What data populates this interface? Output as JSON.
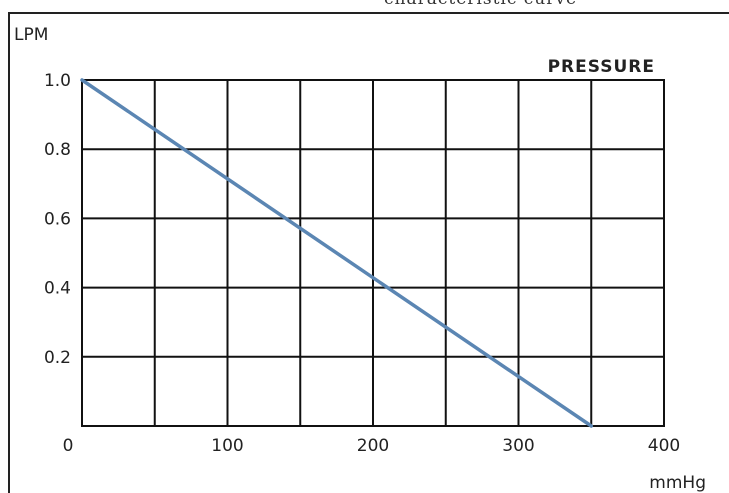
{
  "header": {
    "title_fragment": "characteristic curve"
  },
  "chart_data": {
    "type": "line",
    "title": "",
    "xlabel": "mmHg",
    "ylabel": "LPM",
    "xlim": [
      0,
      400
    ],
    "ylim": [
      0,
      1.0
    ],
    "x_ticks": [
      "0",
      "100",
      "200",
      "300",
      "400"
    ],
    "y_ticks": [
      "0.2",
      "0.4",
      "0.6",
      "0.8",
      "1.0"
    ],
    "grid": true,
    "series": [
      {
        "name": "PRESSURE",
        "color": "#5b86b3",
        "x": [
          0,
          350
        ],
        "y": [
          1.0,
          0.0
        ]
      }
    ]
  }
}
